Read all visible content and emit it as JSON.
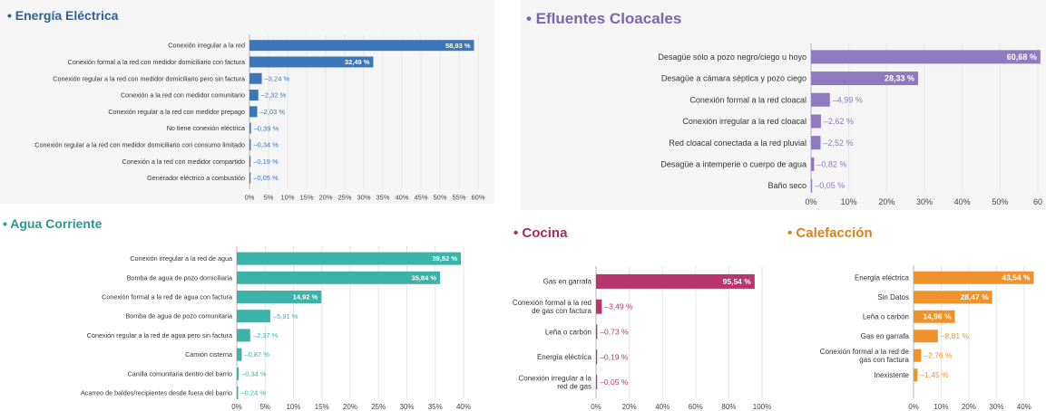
{
  "chart_data": [
    {
      "id": "energia",
      "type": "bar",
      "orientation": "horizontal",
      "title": "• Energía Eléctrica",
      "color": "#3c78b9",
      "title_color": "#2f5f99",
      "categories": [
        "Conexión irregular a la red",
        "Conexión formal a la red con medidor domiciliario con factura",
        "Conexión regular a la red con medidor domiciliario pero sin factura",
        "Conexión a la red con medidor comunitario",
        "Conexión regular a la red con medidor prepago",
        "No tiene conexión eléctrica",
        "Conexión regular a la red con medidor domiciliario con consumo limitado",
        "Conexión a la red con medidor compartido",
        "Generador eléctrico a combustión"
      ],
      "values": [
        58.93,
        32.49,
        3.24,
        2.32,
        2.03,
        0.39,
        0.34,
        0.19,
        0.05
      ],
      "value_labels": [
        "58,93 %",
        "32,49 %",
        "3,24 %",
        "2,32 %",
        "2,03 %",
        "0,39 %",
        "0,34 %",
        "0,19 %",
        "0,05 %"
      ],
      "xlim": [
        0,
        60
      ],
      "ticks": [
        0,
        5,
        10,
        15,
        20,
        25,
        30,
        35,
        40,
        45,
        50,
        55,
        60
      ],
      "tick_labels": [
        "0%",
        "5%",
        "10%",
        "15%",
        "20%",
        "25%",
        "30%",
        "35%",
        "40%",
        "45%",
        "50%",
        "55%",
        "60%"
      ],
      "grid": true
    },
    {
      "id": "efluentes",
      "type": "bar",
      "orientation": "horizontal",
      "title": "• Efluentes Cloacales",
      "color": "#8f7ac0",
      "title_color": "#7b67b0",
      "categories": [
        "Desagüe sólo a pozo negro/ciego u hoyo",
        "Desagüe a cámara séptica y pozo ciego",
        "Conexión formal a la red cloacal",
        "Conexión irregular a la red cloacal",
        "Red cloacal conectada a la red pluvial",
        "Desagüe a intemperie o cuerpo de agua",
        "Baño seco"
      ],
      "values": [
        60.68,
        28.33,
        4.99,
        2.62,
        2.52,
        0.82,
        0.05
      ],
      "value_labels": [
        "60,68 %",
        "28,33 %",
        "4,99 %",
        "2,62 %",
        "2,52 %",
        "0,82 %",
        "0,05 %"
      ],
      "xlim": [
        0,
        60
      ],
      "ticks": [
        0,
        10,
        20,
        30,
        40,
        50,
        60
      ],
      "tick_labels": [
        "0%",
        "10%",
        "20%",
        "30%",
        "40%",
        "50%",
        "60"
      ],
      "grid": true
    },
    {
      "id": "agua",
      "type": "bar",
      "orientation": "horizontal",
      "title": "• Agua Corriente",
      "color": "#3bb3a8",
      "title_color": "#2a9a8e",
      "categories": [
        "Conexión irregular a la red de agua",
        "Bomba de agua de pozo domiciliaria",
        "Conexión formal a la red de agua con factura",
        "Bomba de agua de pozo comunitaria",
        "Conexión regular a la red de agua pero sin factura",
        "Camión cisterna",
        "Canilla comunitaria dentro del barrio",
        "Acarreo de baldes/recipientes desde fuera del barrio"
      ],
      "values": [
        39.52,
        35.84,
        14.92,
        5.91,
        2.37,
        0.87,
        0.34,
        0.24
      ],
      "value_labels": [
        "39,52 %",
        "35,84 %",
        "14,92 %",
        "5,91 %",
        "2,37 %",
        "0,87 %",
        "0,34 %",
        "0,24 %"
      ],
      "xlim": [
        0,
        40
      ],
      "ticks": [
        0,
        5,
        10,
        15,
        20,
        25,
        30,
        35,
        40
      ],
      "tick_labels": [
        "0%",
        "5%",
        "10%",
        "15%",
        "20%",
        "25%",
        "30%",
        "35%",
        "40%"
      ],
      "grid": true
    },
    {
      "id": "cocina",
      "type": "bar",
      "orientation": "horizontal",
      "title": "• Cocina",
      "color": "#b8356e",
      "title_color": "#a52c60",
      "categories": [
        "Gas en garrafa",
        "Conexión formal a la red de gas con factura",
        "Leña o carbón",
        "Energía eléctrica",
        "Conexión irregular a la red de gas"
      ],
      "values": [
        95.54,
        3.49,
        0.73,
        0.19,
        0.05
      ],
      "value_labels": [
        "95,54 %",
        "3,49 %",
        "0,73 %",
        "0,19 %",
        "0,05 %"
      ],
      "xlim": [
        0,
        100
      ],
      "ticks": [
        0,
        20,
        40,
        60,
        80,
        100
      ],
      "tick_labels": [
        "0%",
        "20%",
        "40%",
        "60%",
        "80%",
        "100%"
      ],
      "grid": true
    },
    {
      "id": "calefaccion",
      "type": "bar",
      "orientation": "horizontal",
      "title": "• Calefacción",
      "color": "#f0922b",
      "title_color": "#e07f15",
      "categories": [
        "Energía eléctrica",
        "Sin Datos",
        "Leña o carbón",
        "Gas en garrafa",
        "Conexión formal a la red de gas con factura",
        "Inexistente"
      ],
      "values": [
        43.54,
        28.47,
        14.96,
        8.81,
        2.76,
        1.45
      ],
      "value_labels": [
        "43,54 %",
        "28,47 %",
        "14,96 %",
        "8,81 %",
        "2,76 %",
        "1,45 %"
      ],
      "xlim": [
        0,
        45
      ],
      "ticks": [
        0,
        10,
        20,
        30,
        40
      ],
      "tick_labels": [
        "0%",
        "10%",
        "20%",
        "30%",
        "40%"
      ],
      "grid": true
    }
  ]
}
